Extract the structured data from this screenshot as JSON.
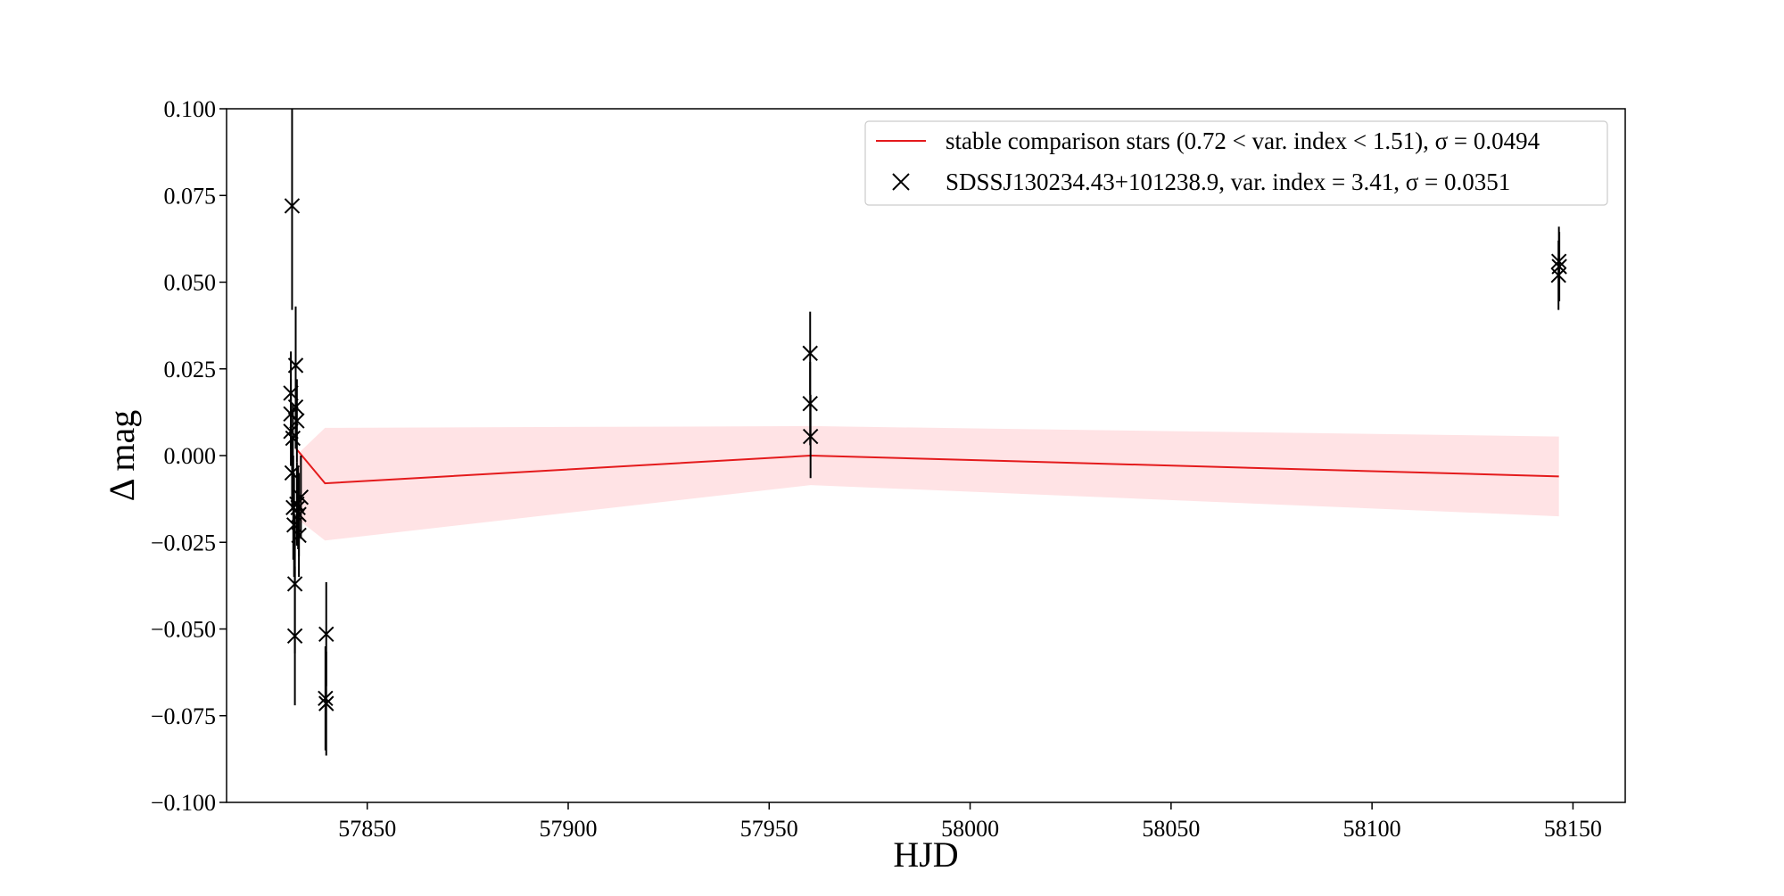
{
  "chart_data": {
    "type": "scatter",
    "title": "",
    "xlabel": "HJD",
    "ylabel": "Δ mag",
    "xlim": [
      57815,
      58163
    ],
    "ylim": [
      -0.1,
      0.1
    ],
    "xticks": [
      57850,
      57900,
      57950,
      58000,
      58050,
      58100,
      58150
    ],
    "xtick_labels": [
      "57850",
      "57900",
      "57950",
      "58000",
      "58050",
      "58100",
      "58150"
    ],
    "yticks": [
      0.1,
      0.075,
      0.05,
      0.025,
      0.0,
      -0.025,
      -0.05,
      -0.075,
      -0.1
    ],
    "ytick_labels": [
      "0.100",
      "0.075",
      "0.050",
      "0.025",
      "0.000",
      "−0.025",
      "−0.050",
      "−0.075",
      "−0.100"
    ],
    "grid": false,
    "legend_position": "top-right",
    "legend": [
      {
        "label": "stable comparison stars (0.72 < var. index < 1.51), σ = 0.0494",
        "marker": "line",
        "color": "#e41a1c"
      },
      {
        "label": "SDSSJ130234.43+101238.9, var. index = 3.41, σ = 0.0351",
        "marker": "x",
        "color": "#000000"
      }
    ],
    "series": [
      {
        "name": "stable comparison stars (0.72 < var. index < 1.51), σ = 0.0494",
        "kind": "line_with_band",
        "color": "#e41a1c",
        "band_color": "#ffe3e5",
        "x": [
          57832.3,
          57839.5,
          57960.3,
          58146.5
        ],
        "y": [
          0.002,
          -0.008,
          0.0,
          -0.006
        ],
        "band_lower": [
          -0.018,
          -0.0245,
          -0.0085,
          -0.0175
        ],
        "band_upper": [
          0.0,
          0.008,
          0.0085,
          0.0055
        ]
      },
      {
        "name": "SDSSJ130234.43+101238.9, var. index = 3.41, σ = 0.0351",
        "kind": "errorbar_x",
        "color": "#000000",
        "points": [
          {
            "x": 57831.3,
            "y": 0.072,
            "err": 0.03
          },
          {
            "x": 57831.0,
            "y": 0.018,
            "err": 0.012
          },
          {
            "x": 57831.0,
            "y": 0.012,
            "err": 0.01
          },
          {
            "x": 57831.0,
            "y": 0.007,
            "err": 0.01
          },
          {
            "x": 57831.5,
            "y": 0.005,
            "err": 0.01
          },
          {
            "x": 57831.3,
            "y": -0.005,
            "err": 0.01
          },
          {
            "x": 57831.6,
            "y": -0.015,
            "err": 0.015
          },
          {
            "x": 57831.8,
            "y": -0.02,
            "err": 0.015
          },
          {
            "x": 57832.0,
            "y": -0.037,
            "err": 0.02
          },
          {
            "x": 57832.0,
            "y": -0.052,
            "err": 0.02
          },
          {
            "x": 57832.2,
            "y": 0.026,
            "err": 0.017
          },
          {
            "x": 57832.2,
            "y": 0.014,
            "err": 0.012
          },
          {
            "x": 57832.5,
            "y": 0.01,
            "err": 0.012
          },
          {
            "x": 57832.5,
            "y": -0.014,
            "err": 0.012
          },
          {
            "x": 57832.8,
            "y": -0.015,
            "err": 0.012
          },
          {
            "x": 57833.0,
            "y": -0.017,
            "err": 0.012
          },
          {
            "x": 57833.0,
            "y": -0.023,
            "err": 0.012
          },
          {
            "x": 57833.5,
            "y": -0.012,
            "err": 0.012
          },
          {
            "x": 57839.8,
            "y": -0.0515,
            "err": 0.015
          },
          {
            "x": 57839.6,
            "y": -0.07,
            "err": 0.015
          },
          {
            "x": 57839.8,
            "y": -0.0715,
            "err": 0.015
          },
          {
            "x": 57960.2,
            "y": 0.0295,
            "err": 0.012
          },
          {
            "x": 57960.2,
            "y": 0.015,
            "err": 0.012
          },
          {
            "x": 57960.3,
            "y": 0.0055,
            "err": 0.012
          },
          {
            "x": 58146.5,
            "y": 0.056,
            "err": 0.01
          },
          {
            "x": 58146.6,
            "y": 0.0545,
            "err": 0.01
          },
          {
            "x": 58146.4,
            "y": 0.052,
            "err": 0.01
          }
        ]
      }
    ]
  }
}
